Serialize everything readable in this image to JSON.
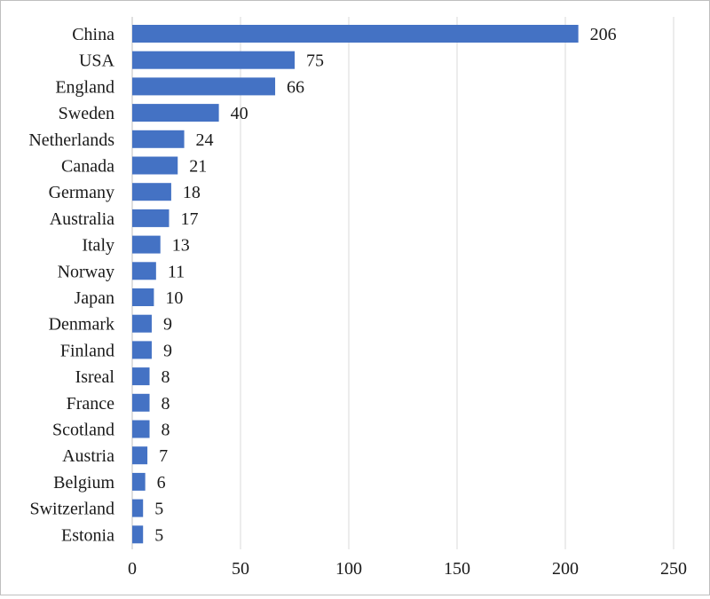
{
  "chart_data": {
    "type": "bar",
    "orientation": "horizontal",
    "categories": [
      "China",
      "USA",
      "England",
      "Sweden",
      "Netherlands",
      "Canada",
      "Germany",
      "Australia",
      "Italy",
      "Norway",
      "Japan",
      "Denmark",
      "Finland",
      "Isreal",
      "France",
      "Scotland",
      "Austria",
      "Belgium",
      "Switzerland",
      "Estonia"
    ],
    "values": [
      206,
      75,
      66,
      40,
      24,
      21,
      18,
      17,
      13,
      11,
      10,
      9,
      9,
      8,
      8,
      8,
      7,
      6,
      5,
      5
    ],
    "xlim": [
      0,
      250
    ],
    "xticks": [
      0,
      50,
      100,
      150,
      200,
      250
    ],
    "title": "",
    "xlabel": "",
    "ylabel": "",
    "grid": "vertical",
    "legend": "none",
    "data_labels": true,
    "colors": {
      "bar": "#4472C4",
      "grid": "#d9d9d9",
      "text": "#1a1a1a"
    }
  }
}
